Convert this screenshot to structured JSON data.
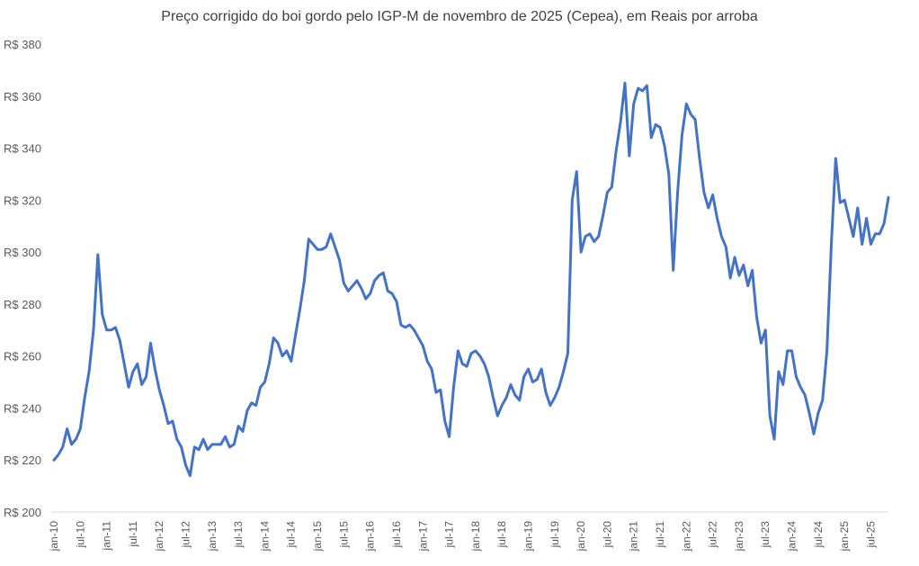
{
  "chart_data": {
    "type": "line",
    "title": "Preço corrigido do boi gordo pelo IGP-M de novembro de 2025 (Cepea), em Reais por arroba",
    "xlabel": "",
    "ylabel": "",
    "ylim": [
      200,
      380
    ],
    "ytick_step": 20,
    "ytick_prefix": "R$ ",
    "grid": false,
    "legend": "none",
    "line_color": "#4472C4",
    "x_tick_labels": [
      "jan-10",
      "jul-10",
      "jan-11",
      "jul-11",
      "jan-12",
      "jul-12",
      "jan-13",
      "jul-13",
      "jan-14",
      "jul-14",
      "jan-15",
      "jul-15",
      "jan-16",
      "jul-16",
      "jan-17",
      "jul-17",
      "jan-18",
      "jul-18",
      "jan-19",
      "jul-19",
      "jan-20",
      "jul-20",
      "jan-21",
      "jul-21",
      "jan-22",
      "jul-22",
      "jan-23",
      "jul-23",
      "jan-24",
      "jul-24",
      "jan-25",
      "jul-25"
    ],
    "start_label": "jan-10",
    "series": [
      {
        "name": "Preço corrigido do boi gordo",
        "frequency": "monthly",
        "values": [
          220,
          222,
          225,
          232,
          226,
          228,
          232,
          244,
          254,
          270,
          299,
          276,
          270,
          270,
          271,
          266,
          257,
          248,
          254,
          257,
          249,
          252,
          265,
          255,
          247,
          241,
          234,
          235,
          228,
          225,
          218,
          214,
          225,
          224,
          228,
          224,
          226,
          226,
          226,
          229,
          225,
          226,
          233,
          231,
          239,
          242,
          241,
          248,
          250,
          257,
          267,
          265,
          260,
          262,
          258,
          268,
          278,
          289,
          305,
          303,
          301,
          301,
          302,
          307,
          302,
          297,
          288,
          285,
          287,
          289,
          286,
          282,
          284,
          289,
          291,
          292,
          285,
          284,
          281,
          272,
          271,
          272,
          270,
          267,
          264,
          258,
          255,
          246,
          247,
          235,
          229,
          248,
          262,
          257,
          256,
          261,
          262,
          260,
          257,
          252,
          244,
          237,
          241,
          244,
          249,
          245,
          243,
          252,
          255,
          250,
          251,
          255,
          246,
          241,
          244,
          248,
          254,
          261,
          320,
          331,
          300,
          306,
          307,
          304,
          306,
          314,
          323,
          325,
          339,
          350,
          365,
          337,
          357,
          363,
          362,
          364,
          344,
          349,
          348,
          341,
          330,
          293,
          323,
          345,
          357,
          353,
          351,
          336,
          323,
          317,
          322,
          313,
          306,
          302,
          290,
          298,
          291,
          295,
          287,
          293,
          275,
          265,
          270,
          237,
          228,
          254,
          249,
          262,
          262,
          252,
          248,
          245,
          238,
          230,
          238,
          243,
          262,
          303,
          336,
          319,
          320,
          313,
          306,
          317,
          303,
          313,
          303,
          307,
          307,
          311,
          321
        ]
      }
    ]
  }
}
